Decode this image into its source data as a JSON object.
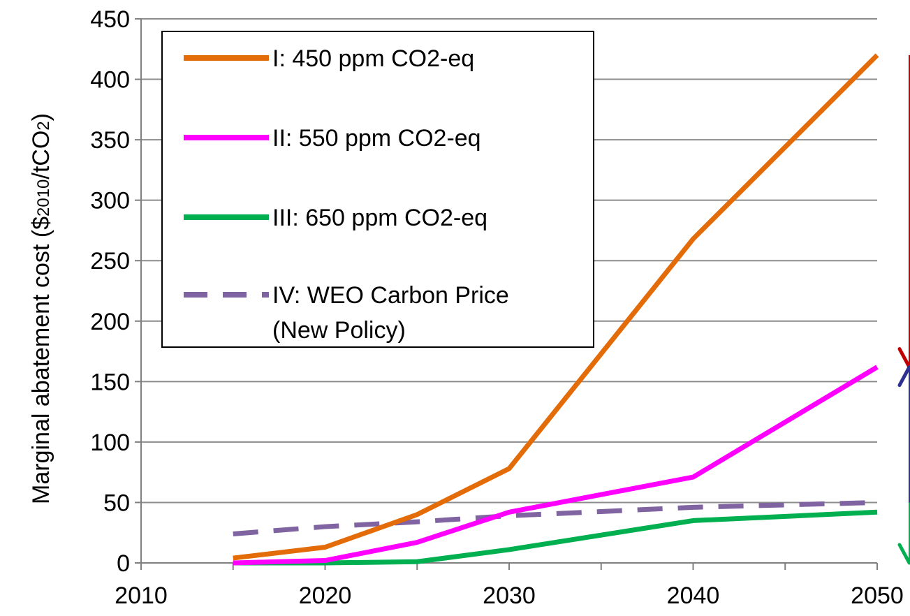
{
  "chart_data": {
    "type": "line",
    "ylabel": {
      "prefix": "Marginal abatement cost ($",
      "sub1": "2010",
      "middle": "/tCO",
      "sub2": "2",
      "suffix": ")"
    },
    "xlim": [
      2010,
      2050
    ],
    "ylim": [
      0,
      450
    ],
    "x_ticks": [
      2010,
      2020,
      2030,
      2040,
      2050
    ],
    "y_ticks": [
      0,
      50,
      100,
      150,
      200,
      250,
      300,
      350,
      400,
      450
    ],
    "grid": true,
    "legend_position": "top-left",
    "series": [
      {
        "name": "I: 450 ppm CO2-eq",
        "color": "#E36C09",
        "dashed": false,
        "x": [
          2015,
          2020,
          2025,
          2030,
          2040,
          2050
        ],
        "y": [
          4,
          13,
          40,
          78,
          268,
          420
        ]
      },
      {
        "name": "II: 550 ppm CO2-eq",
        "color": "#FF00FF",
        "dashed": false,
        "x": [
          2015,
          2020,
          2025,
          2030,
          2040,
          2050
        ],
        "y": [
          0,
          2,
          17,
          42,
          71,
          162
        ]
      },
      {
        "name": "III: 650 ppm CO2-eq",
        "color": "#00B050",
        "dashed": false,
        "x": [
          2015,
          2020,
          2025,
          2030,
          2040,
          2050
        ],
        "y": [
          0,
          0,
          1,
          11,
          35,
          42
        ]
      },
      {
        "name": "IV: WEO Carbon Price",
        "name_line2": "(New Policy)",
        "color": "#8064A2",
        "dashed": true,
        "x": [
          2015,
          2020,
          2025,
          2030,
          2040,
          2050
        ],
        "y": [
          24,
          30,
          34,
          39,
          46,
          50
        ]
      }
    ],
    "annotations": {
      "side_arrows": [
        {
          "color": "#C00000",
          "from": 420,
          "to": 162
        },
        {
          "color": "#2E3092",
          "from": 50,
          "to": 162
        },
        {
          "color": "#00B050",
          "from": 50,
          "to": 0
        }
      ]
    }
  }
}
